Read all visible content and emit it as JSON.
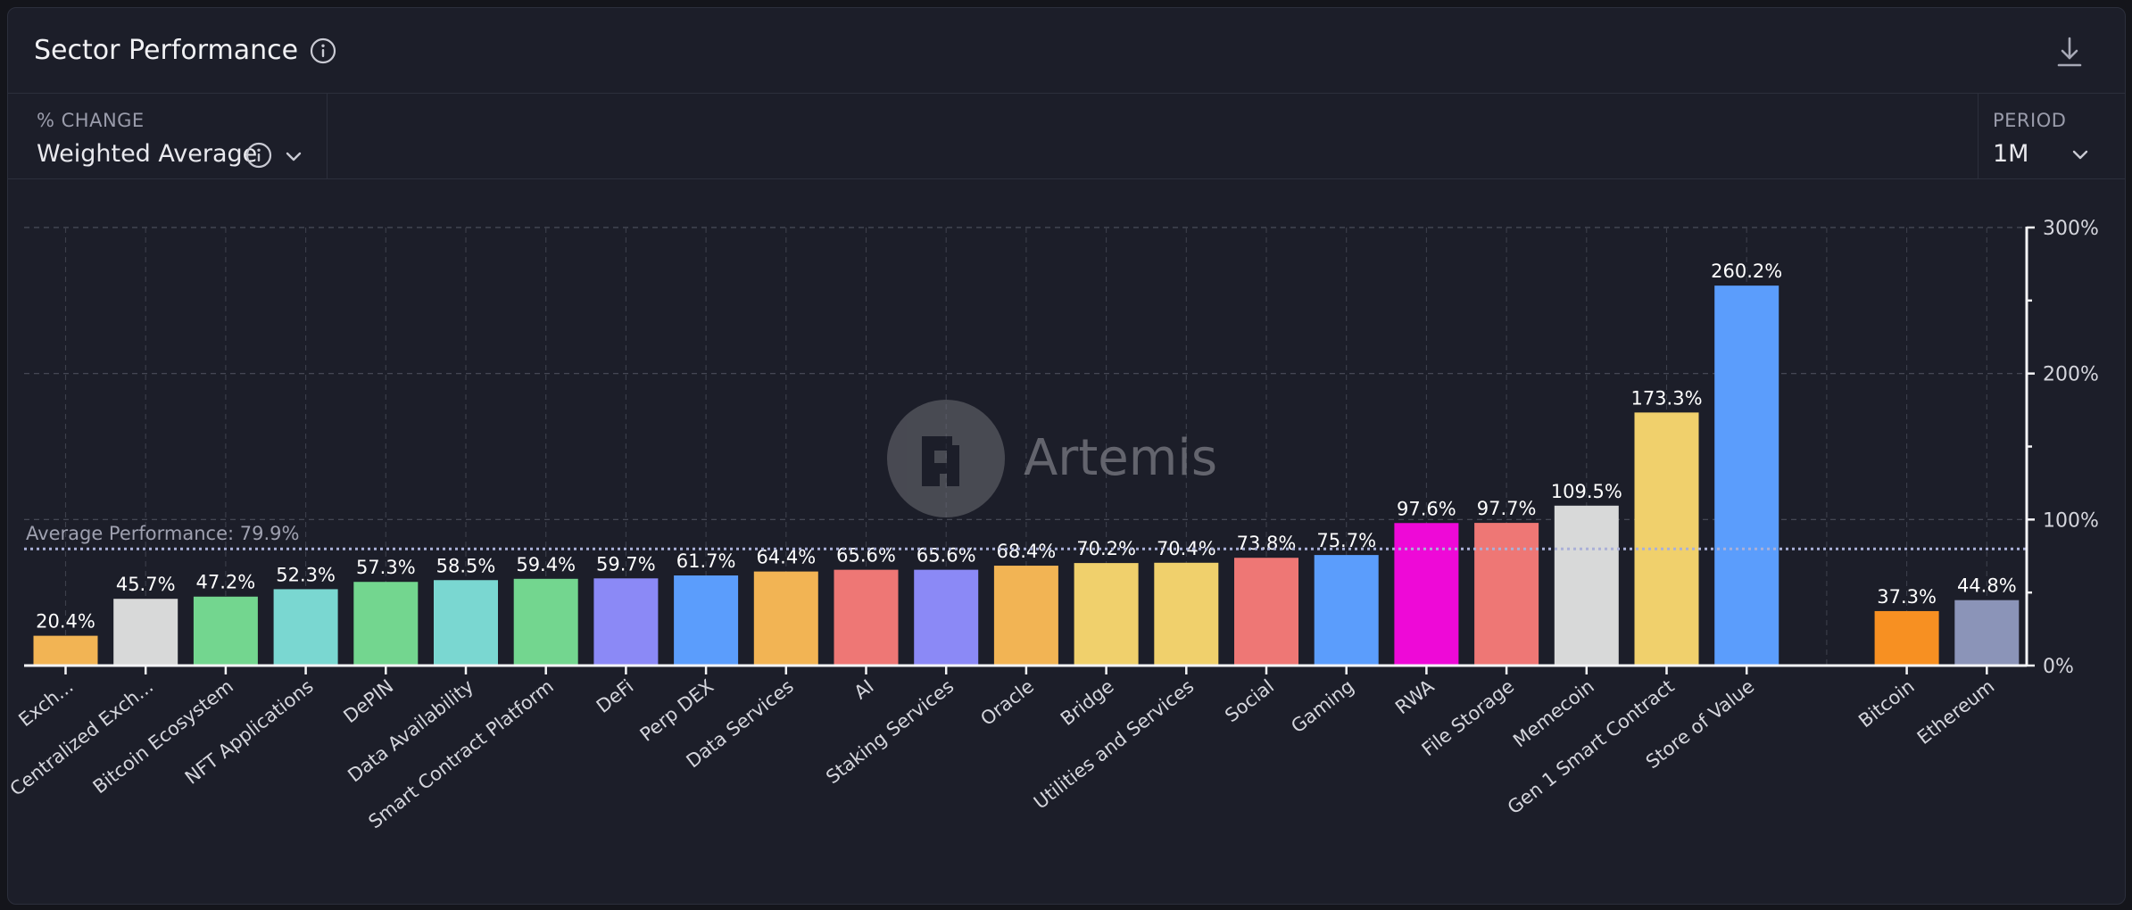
{
  "header": {
    "title": "Sector Performance"
  },
  "controls": {
    "change_label": "% CHANGE",
    "change_value": "Weighted Average",
    "period_label": "PERIOD",
    "period_value": "1M"
  },
  "watermark": {
    "text": "Artemis"
  },
  "icons": {
    "title_info": "info-icon",
    "download": "download-icon",
    "change_info": "info-icon",
    "change_dropdown": "chevron-down-icon",
    "period_dropdown": "chevron-down-icon"
  },
  "chart_data": {
    "type": "bar",
    "categories": [
      "Exch...",
      "Centralized Exch...",
      "Bitcoin Ecosystem",
      "NFT Applications",
      "DePIN",
      "Data Availability",
      "Smart Contract Platform",
      "DeFi",
      "Perp DEX",
      "Data Services",
      "AI",
      "Staking Services",
      "Oracle",
      "Bridge",
      "Utilities and Services",
      "Social",
      "Gaming",
      "RWA",
      "File Storage",
      "Memecoin",
      "Gen 1 Smart Contract",
      "Store of Value",
      "Bitcoin",
      "Ethereum"
    ],
    "values": [
      20.4,
      45.7,
      47.2,
      52.3,
      57.3,
      58.5,
      59.4,
      59.7,
      61.7,
      64.4,
      65.6,
      65.6,
      68.4,
      70.2,
      70.4,
      73.8,
      75.7,
      97.6,
      97.7,
      109.5,
      173.3,
      260.2,
      37.3,
      44.8
    ],
    "value_labels": [
      "20.4%",
      "45.7%",
      "47.2%",
      "52.3%",
      "57.3%",
      "58.5%",
      "59.4%",
      "59.7%",
      "61.7%",
      "64.4%",
      "65.6%",
      "65.6%",
      "68.4%",
      "70.2%",
      "70.4%",
      "73.8%",
      "75.7%",
      "97.6%",
      "97.7%",
      "109.5%",
      "173.3%",
      "260.2%",
      "37.3%",
      "44.8%"
    ],
    "colors": [
      "#f2b454",
      "#d8d9d9",
      "#73d68f",
      "#7ad7d1",
      "#73d68f",
      "#7ad7d1",
      "#73d68f",
      "#8b89f6",
      "#5b9dfc",
      "#f2b454",
      "#ee7775",
      "#8b89f6",
      "#f2b454",
      "#f0d06c",
      "#f0d06c",
      "#ee7775",
      "#5b9dfc",
      "#ee09d7",
      "#ee7775",
      "#d8d9d9",
      "#f0d06c",
      "#5b9dfc",
      "#f79022",
      "#8b94b8"
    ],
    "gap_after_index": 21,
    "ylim": [
      0,
      300
    ],
    "y_ticks": [
      0,
      100,
      200,
      300
    ],
    "y_tick_labels": [
      "0%",
      "100%",
      "200%",
      "300%"
    ],
    "grid": true,
    "y_axis_side": "right",
    "average": {
      "value": 79.9,
      "label": "Average Performance: 79.9%"
    }
  }
}
